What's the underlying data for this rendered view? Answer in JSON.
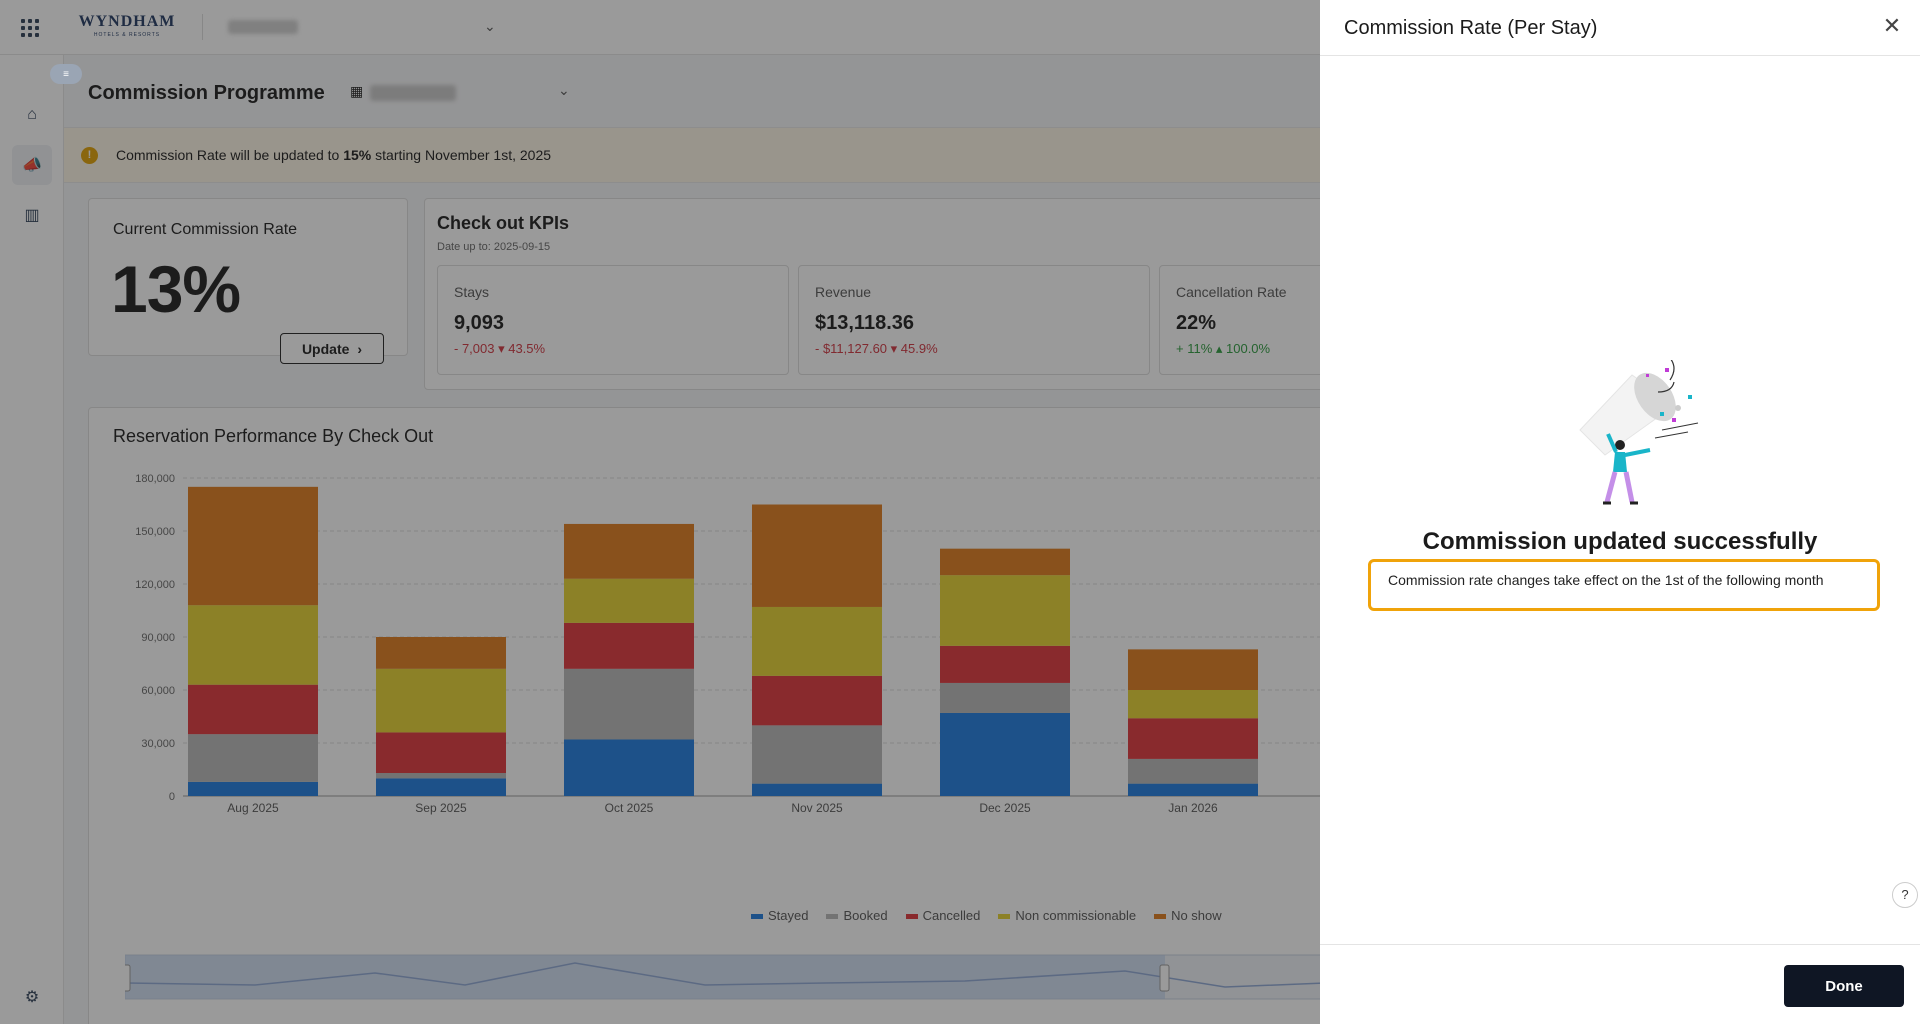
{
  "header": {
    "logo_text": "WYNDHAM",
    "logo_sub": "HOTELS & RESORTS"
  },
  "page": {
    "title": "Commission Programme"
  },
  "banner": {
    "prefix": "Commission Rate will be updated to ",
    "bold": "15%",
    "suffix": " starting November 1st, 2025"
  },
  "current_rate": {
    "label": "Current Commission Rate",
    "value": "13%",
    "update_label": "Update"
  },
  "kpis": {
    "title": "Check out KPIs",
    "date": "Date up to: 2025-09-15",
    "items": [
      {
        "label": "Stays",
        "value": "9,093",
        "change": "- 7,003 ▾ 43.5%",
        "trend": "neg"
      },
      {
        "label": "Revenue",
        "value": "$13,118.36",
        "change": "- $11,127.60 ▾ 45.9%",
        "trend": "neg"
      },
      {
        "label": "Cancellation Rate",
        "value": "22%",
        "change": "+ 11% ▴ 100.0%",
        "trend": "pos"
      }
    ]
  },
  "chart_data": {
    "type": "bar",
    "stacked": true,
    "title": "Reservation Performance By Check Out",
    "categories": [
      "Aug 2025",
      "Sep 2025",
      "Oct 2025",
      "Nov 2025",
      "Dec 2025",
      "Jan 2026"
    ],
    "ylim": [
      0,
      180000
    ],
    "yticks": [
      "0",
      "30,000",
      "60,000",
      "90,000",
      "120,000",
      "150,000",
      "180,000"
    ],
    "series": [
      {
        "name": "Stayed",
        "color": "#1c7be0",
        "values": [
          8000,
          10000,
          32000,
          7000,
          47000,
          7000
        ]
      },
      {
        "name": "Booked",
        "color": "#b8b8b8",
        "values": [
          27000,
          3000,
          40000,
          33000,
          17000,
          14000
        ]
      },
      {
        "name": "Cancelled",
        "color": "#e0333a",
        "values": [
          28000,
          23000,
          26000,
          28000,
          21000,
          23000
        ]
      },
      {
        "name": "Non commissionable",
        "color": "#e6d22e",
        "values": [
          45000,
          36000,
          25000,
          39000,
          40000,
          16000
        ]
      },
      {
        "name": "No show",
        "color": "#e07b1b",
        "values": [
          67000,
          18000,
          31000,
          58000,
          15000,
          23000
        ]
      }
    ],
    "grid": true,
    "legend": "bottom"
  },
  "drawer": {
    "title": "Commission Rate (Per Stay)",
    "success_title": "Commission updated successfully",
    "success_text": "Commission rate changes take effect on the 1st of the following month",
    "done_label": "Done",
    "help_label": "?"
  }
}
